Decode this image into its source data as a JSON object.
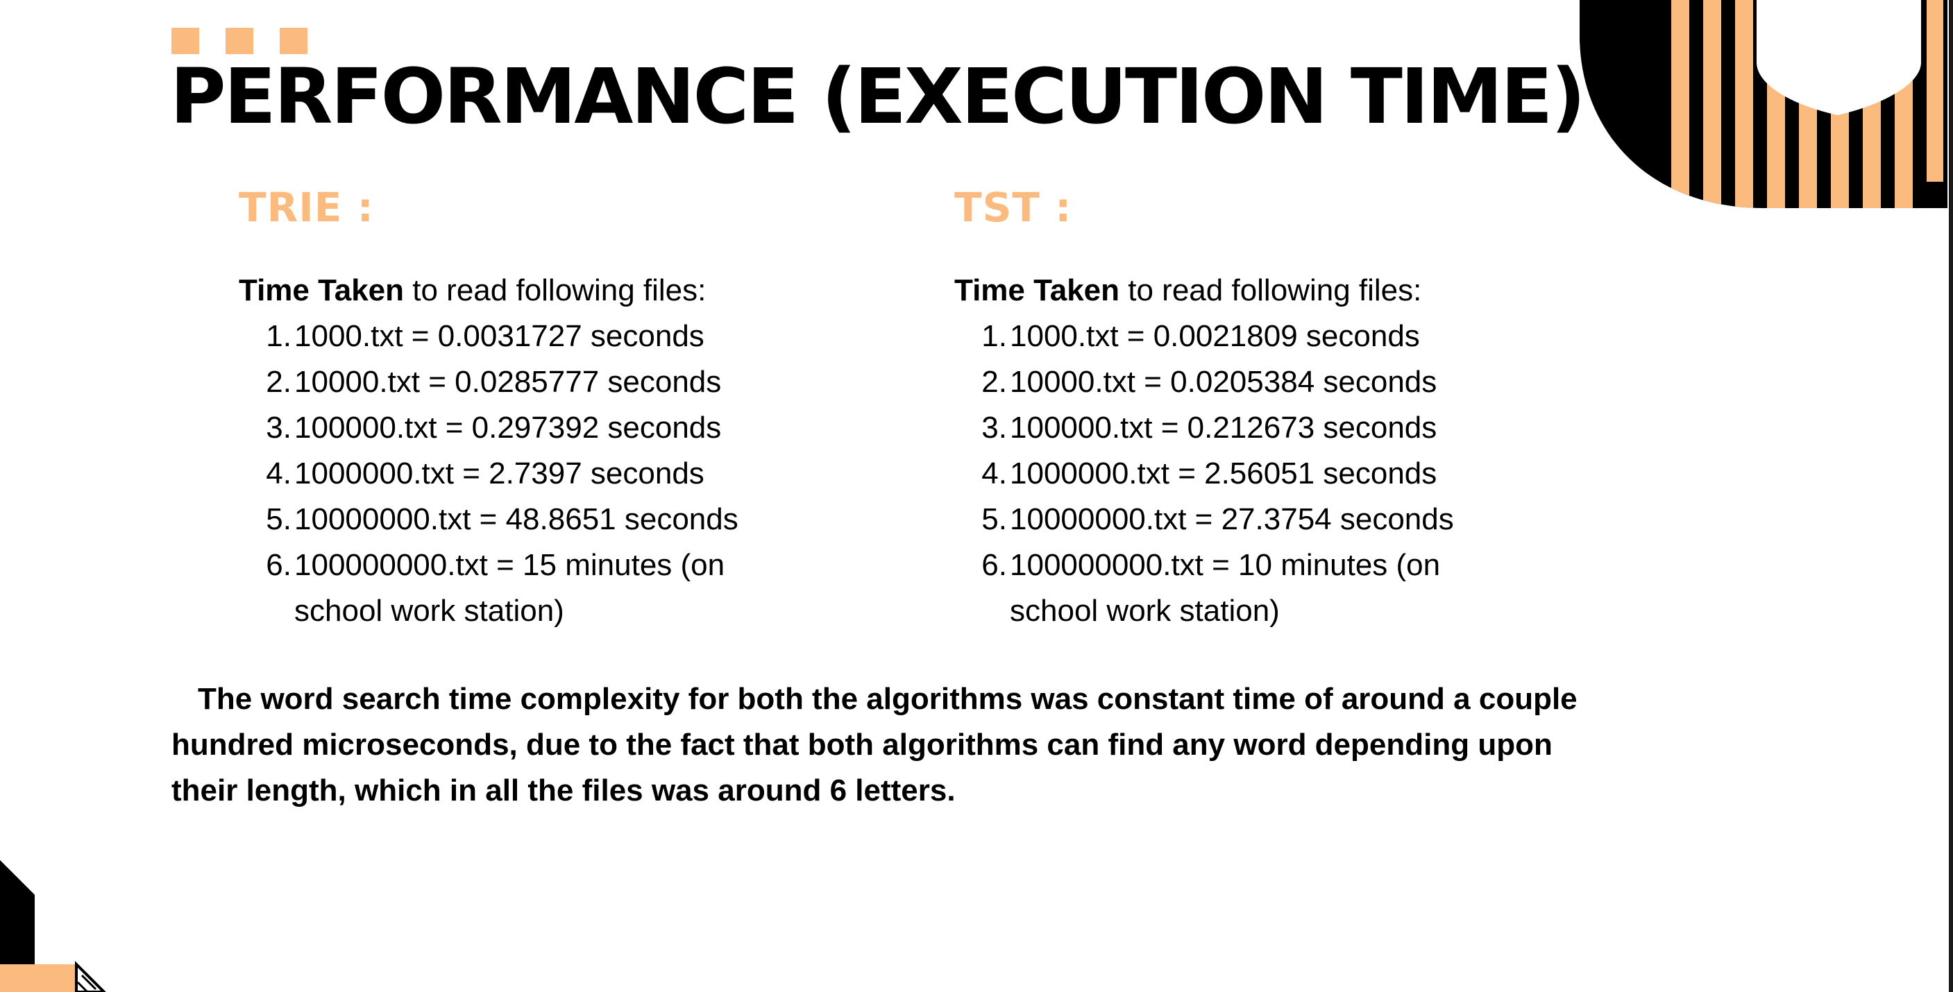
{
  "title": "PERFORMANCE (EXECUTION TIME)",
  "accent_color": "#fbbb7e",
  "trie": {
    "heading": "TRIE :",
    "intro_bold": "Time Taken",
    "intro_rest": " to read following files:",
    "items": [
      {
        "num": "1.",
        "text": "1000.txt = 0.0031727 seconds"
      },
      {
        "num": "2.",
        "text": "10000.txt = 0.0285777 seconds"
      },
      {
        "num": "3.",
        "text": "100000.txt = 0.297392 seconds"
      },
      {
        "num": "4.",
        "text": "1000000.txt = 2.7397 seconds"
      },
      {
        "num": "5.",
        "text": "10000000.txt = 48.8651 seconds"
      },
      {
        "num": "6.",
        "text": "100000000.txt = 15 minutes (on school work station)"
      }
    ]
  },
  "tst": {
    "heading": "TST :",
    "intro_bold": "Time Taken",
    "intro_rest": " to read following files:",
    "items": [
      {
        "num": "1.",
        "text": "1000.txt = 0.0021809 seconds"
      },
      {
        "num": "2.",
        "text": "10000.txt = 0.0205384 seconds"
      },
      {
        "num": "3.",
        "text": "100000.txt = 0.212673 seconds"
      },
      {
        "num": "4.",
        "text": "1000000.txt = 2.56051 seconds"
      },
      {
        "num": "5.",
        "text": "10000000.txt = 27.3754 seconds"
      },
      {
        "num": "6.",
        "text": "100000000.txt = 10 minutes (on school work station)"
      }
    ]
  },
  "summary": "The word search time complexity for both the algorithms was constant time of around a couple hundred microseconds, due to the fact that both algorithms can find any word depending upon their length, which in all the files was around 6 letters."
}
